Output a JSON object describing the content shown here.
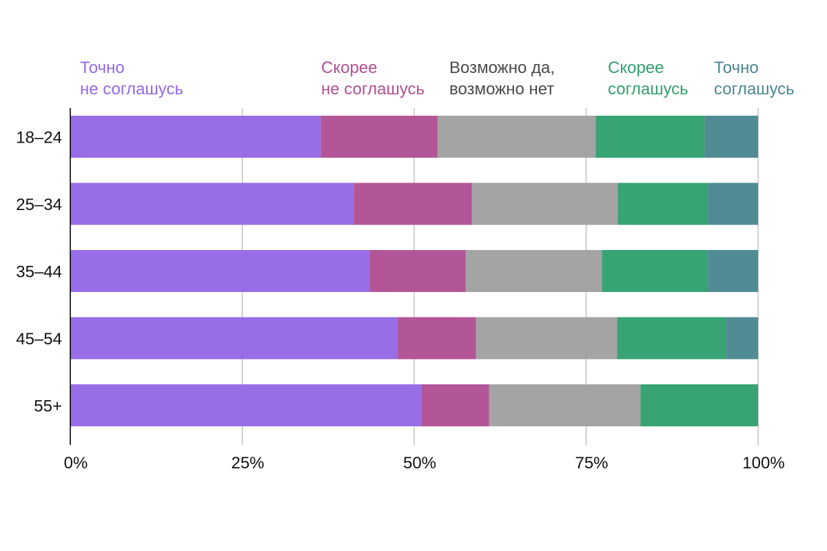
{
  "chart_data": {
    "type": "bar",
    "orientation": "horizontal",
    "stacked": true,
    "categories": [
      "18–24",
      "25–34",
      "35–44",
      "45–54",
      "55+"
    ],
    "series": [
      {
        "name": "Точно\nне соглашусь",
        "color": "#9468e6",
        "values": [
          36.4,
          41.2,
          43.5,
          47.6,
          51.1
        ]
      },
      {
        "name": "Скорее\nне соглашусь",
        "color": "#b04f93",
        "values": [
          17.0,
          17.2,
          14.0,
          11.4,
          9.8
        ]
      },
      {
        "name": "Возможно да,\n возможно нет",
        "color": "#a0a0a0",
        "values": [
          23.0,
          21.2,
          19.8,
          20.5,
          22.0
        ]
      },
      {
        "name": "Скорее\nсоглашусь",
        "color": "#31a06d",
        "values": [
          15.8,
          13.0,
          15.4,
          15.8,
          17.1
        ]
      },
      {
        "name": "Точно\nсоглашусь",
        "color": "#4a8790",
        "values": [
          7.8,
          7.4,
          7.3,
          4.7,
          0
        ]
      }
    ],
    "xticks": [
      "0%",
      "25%",
      "50%",
      "75%",
      "100%"
    ],
    "xlim": [
      0,
      100
    ],
    "grid": true,
    "legend_position": "top"
  }
}
